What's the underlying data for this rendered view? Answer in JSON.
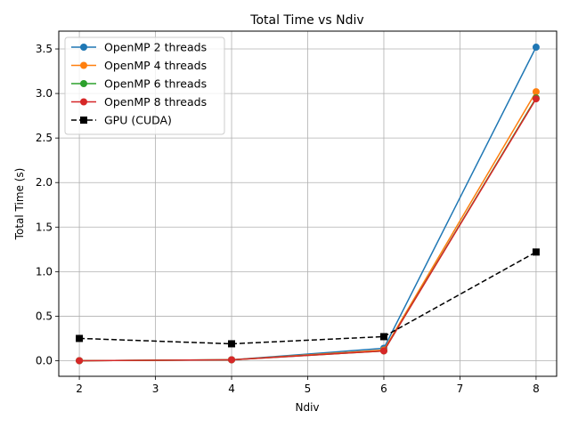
{
  "chart_data": {
    "type": "line",
    "title": "Total Time vs Ndiv",
    "xlabel": "Ndiv",
    "ylabel": "Total Time (s)",
    "x": [
      2,
      4,
      6,
      8
    ],
    "xlim": [
      1.73,
      8.27
    ],
    "ylim": [
      -0.175,
      3.7
    ],
    "xticks": [
      2,
      3,
      4,
      5,
      6,
      7,
      8
    ],
    "xtick_labels": [
      "2",
      "3",
      "4",
      "5",
      "6",
      "7",
      "8"
    ],
    "yticks": [
      0.0,
      0.5,
      1.0,
      1.5,
      2.0,
      2.5,
      3.0,
      3.5
    ],
    "ytick_labels": [
      "0.0",
      "0.5",
      "1.0",
      "1.5",
      "2.0",
      "2.5",
      "3.0",
      "3.5"
    ],
    "grid": true,
    "legend_position": "top-left",
    "series": [
      {
        "name": "OpenMP 2 threads",
        "values": [
          0.0,
          0.01,
          0.14,
          3.52
        ],
        "color": "#1f77b4",
        "marker": "circle",
        "dash": "solid"
      },
      {
        "name": "OpenMP 4 threads",
        "values": [
          0.0,
          0.01,
          0.12,
          3.02
        ],
        "color": "#ff7f0e",
        "marker": "circle",
        "dash": "solid"
      },
      {
        "name": "OpenMP 6 threads",
        "values": [
          0.0,
          0.01,
          0.11,
          2.95
        ],
        "color": "#2ca02c",
        "marker": "circle",
        "dash": "solid"
      },
      {
        "name": "OpenMP 8 threads",
        "values": [
          0.0,
          0.01,
          0.11,
          2.94
        ],
        "color": "#d62728",
        "marker": "circle",
        "dash": "solid"
      },
      {
        "name": "GPU (CUDA)",
        "values": [
          0.25,
          0.19,
          0.27,
          1.22
        ],
        "color": "#000000",
        "marker": "square",
        "dash": "dashed"
      }
    ]
  }
}
